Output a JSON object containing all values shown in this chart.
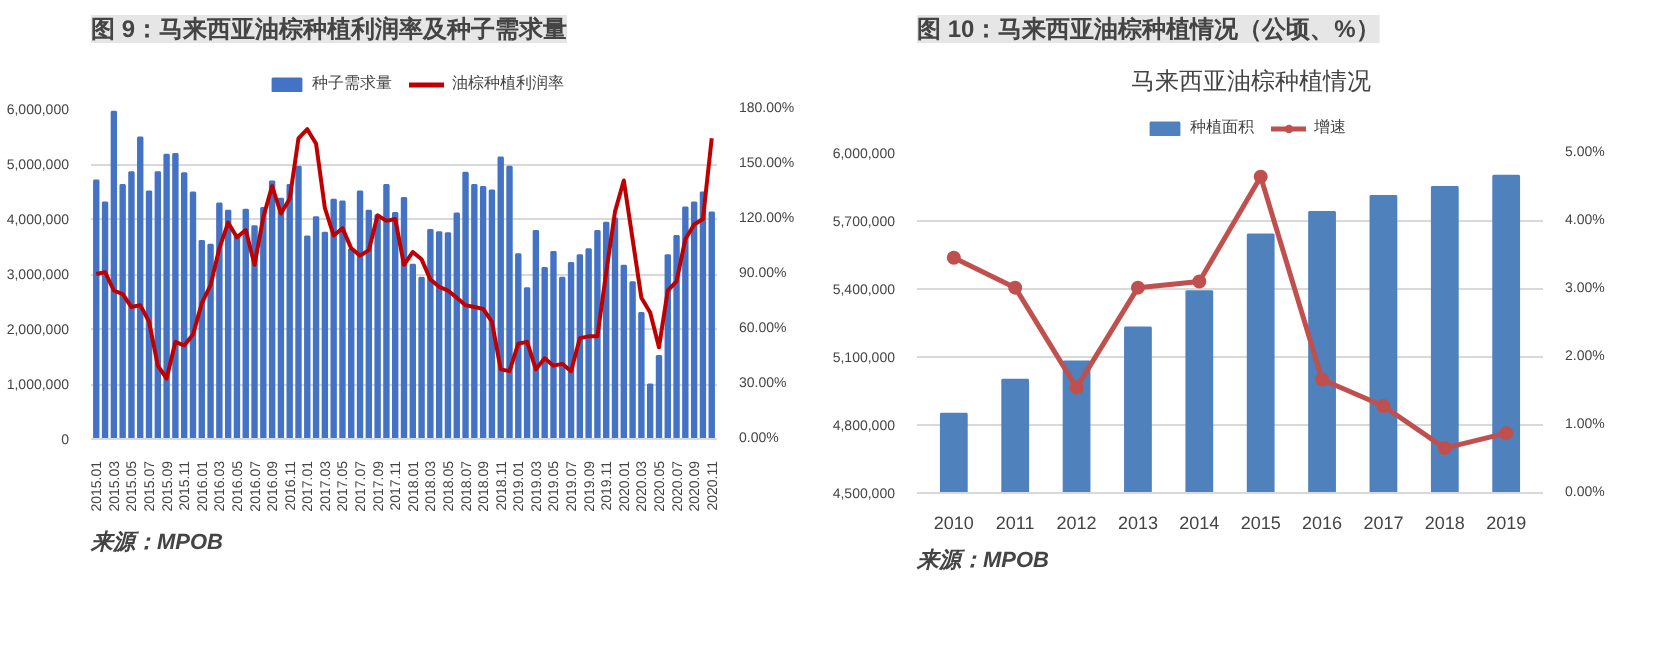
{
  "chart_data": [
    {
      "type": "bar",
      "title": "图 9：马来西亚油棕种植利润率及种子需求量",
      "annotations": [
        "来源：MPOB"
      ],
      "categories": [
        "2015.01",
        null,
        "2015.03",
        null,
        "2015.05",
        null,
        "2015.07",
        null,
        "2015.09",
        null,
        "2015.11",
        null,
        "2016.01",
        null,
        "2016.03",
        null,
        "2016.05",
        null,
        "2016.07",
        null,
        "2016.09",
        null,
        "2016.11",
        null,
        "2017.01",
        null,
        "2017.03",
        null,
        "2017.05",
        null,
        "2017.07",
        null,
        "2017.09",
        null,
        "2017.11",
        null,
        "2018.01",
        null,
        "2018.03",
        null,
        "2018.05",
        null,
        "2018.07",
        null,
        "2018.09",
        null,
        "2018.11",
        null,
        "2019.01",
        null,
        "2019.03",
        null,
        "2019.05",
        null,
        "2019.07",
        null,
        "2019.09",
        null,
        "2019.11",
        null,
        "2020.01",
        null,
        "2020.03",
        null,
        "2020.05",
        null,
        "2020.07",
        null,
        "2020.09",
        null,
        "2020.11"
      ],
      "series": [
        {
          "name": "种子需求量",
          "color": "#4472c4",
          "values": [
            4700000,
            4300000,
            5950000,
            4620000,
            4850000,
            5480000,
            4500000,
            4850000,
            5170000,
            5180000,
            4830000,
            4480000,
            3600000,
            3530000,
            4280000,
            4150000,
            3700000,
            4170000,
            3870000,
            4200000,
            4680000,
            4370000,
            4620000,
            4950000,
            3680000,
            4030000,
            3750000,
            4350000,
            4320000,
            3450000,
            4500000,
            4150000,
            4070000,
            4620000,
            4110000,
            4380000,
            3170000,
            2930000,
            3800000,
            3760000,
            3740000,
            4100000,
            4840000,
            4620000,
            4580000,
            4520000,
            5120000,
            4950000,
            3360000,
            2740000,
            3780000,
            3110000,
            3400000,
            2930000,
            3200000,
            3340000,
            3450000,
            3780000,
            3930000,
            4010000,
            3150000,
            2850000,
            2290000,
            990000,
            1510000,
            3340000,
            3690000,
            4210000,
            4300000,
            4480000,
            4120000
          ]
        },
        {
          "name": "油棕种植利润率",
          "type": "line",
          "axis": "y2",
          "color": "#c00000",
          "values": [
            90,
            91,
            81,
            79,
            72,
            73,
            64,
            40,
            33,
            53,
            51,
            57,
            74,
            84,
            104,
            118,
            110,
            114,
            95,
            121,
            138,
            123,
            131,
            164,
            169,
            161,
            126,
            111,
            115,
            104,
            100,
            103,
            122,
            119,
            120,
            95,
            102,
            98,
            87,
            83,
            81,
            77,
            73,
            72,
            71,
            64,
            38,
            37,
            52,
            53,
            38,
            44,
            40,
            41,
            37,
            55,
            56,
            56,
            91,
            124,
            141,
            109,
            77,
            69,
            50,
            81,
            86,
            109,
            117,
            120,
            164
          ]
        }
      ],
      "ylim": [
        0,
        6000000
      ],
      "yticks": [
        {
          "value": 0,
          "label": "0"
        },
        {
          "value": 1000000,
          "label": "1,000,000"
        },
        {
          "value": 2000000,
          "label": "2,000,000"
        },
        {
          "value": 3000000,
          "label": "3,000,000"
        },
        {
          "value": 4000000,
          "label": "4,000,000"
        },
        {
          "value": 5000000,
          "label": "5,000,000"
        },
        {
          "value": 6000000,
          "label": "6,000,000"
        }
      ],
      "y2lim": [
        0,
        180
      ],
      "y2ticks": [
        {
          "value": 0,
          "label": "0.00%"
        },
        {
          "value": 30,
          "label": "30.00%"
        },
        {
          "value": 60,
          "label": "60.00%"
        },
        {
          "value": 90,
          "label": "90.00%"
        },
        {
          "value": 120,
          "label": "120.00%"
        },
        {
          "value": 150,
          "label": "150.00%"
        },
        {
          "value": 180,
          "label": "180.00%"
        }
      ],
      "grid": "y",
      "legend": "top",
      "marker": "none"
    },
    {
      "type": "bar",
      "title": "图 10：马来西亚油棕种植情况（公顷、%）",
      "subtitle": "马来西亚油棕种植情况",
      "annotations": [
        "来源：MPOB"
      ],
      "categories": [
        "2010",
        "2011",
        "2012",
        "2013",
        "2014",
        "2015",
        "2016",
        "2017",
        "2018",
        "2019"
      ],
      "series": [
        {
          "name": "种植面积",
          "color": "#4f81bd",
          "values": [
            4850000,
            5000000,
            5080000,
            5230000,
            5390000,
            5640000,
            5740000,
            5810000,
            5850000,
            5900000
          ]
        },
        {
          "name": "增速",
          "type": "line",
          "axis": "y2",
          "color": "#c0504d",
          "values": [
            3.46,
            3.02,
            1.55,
            3.02,
            3.11,
            4.65,
            1.67,
            1.28,
            0.66,
            0.88
          ]
        }
      ],
      "ylim": [
        4500000,
        6000000
      ],
      "yticks": [
        {
          "value": 4500000,
          "label": "4,500,000"
        },
        {
          "value": 4800000,
          "label": "4,800,000"
        },
        {
          "value": 5100000,
          "label": "5,100,000"
        },
        {
          "value": 5400000,
          "label": "5,400,000"
        },
        {
          "value": 5700000,
          "label": "5,700,000"
        },
        {
          "value": 6000000,
          "label": "6,000,000"
        }
      ],
      "y2lim": [
        0,
        5
      ],
      "y2ticks": [
        {
          "value": 0,
          "label": "0.00%"
        },
        {
          "value": 1,
          "label": "1.00%"
        },
        {
          "value": 2,
          "label": "2.00%"
        },
        {
          "value": 3,
          "label": "3.00%"
        },
        {
          "value": 4,
          "label": "4.00%"
        },
        {
          "value": 5,
          "label": "5.00%"
        }
      ],
      "grid": "y",
      "legend": "top",
      "marker": "circle"
    }
  ]
}
